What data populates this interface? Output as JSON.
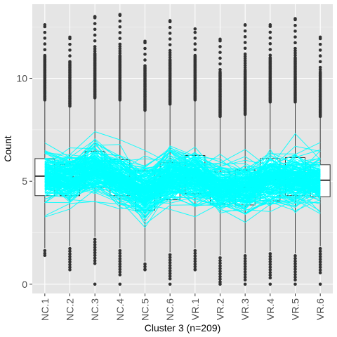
{
  "chart_data": {
    "type": "box",
    "title": "",
    "xlabel": "Cluster 3 (n=209)",
    "ylabel": "Count",
    "categories": [
      "NC.1",
      "NC.2",
      "NC.3",
      "NC.4",
      "NC.5",
      "NC.6",
      "VR.1",
      "VR.2",
      "VR.3",
      "VR.4",
      "VR.5",
      "VR.6"
    ],
    "ylim": [
      -0.45,
      13.6
    ],
    "yticks": [
      0,
      5,
      10
    ],
    "grid": true,
    "panel_background": "#E5E5E5",
    "grid_color": "#FFFFFF",
    "box_fill": "#FFFFFF",
    "box_stroke": "#333333",
    "outlier_color": "#333333",
    "line_color": "#00FFFF",
    "line_count": 209,
    "boxes": [
      {
        "category": "NC.1",
        "q1": 4.3,
        "median": 5.25,
        "q3": 6.1,
        "whisker_low": 1.75,
        "whisker_high": 8.9,
        "outlier_max": 12.6,
        "outlier_min": 1.4
      },
      {
        "category": "NC.2",
        "q1": 4.3,
        "median": 5.2,
        "q3": 5.8,
        "whisker_low": 1.85,
        "whisker_high": 8.6,
        "outlier_max": 12.0,
        "outlier_min": 0.7
      },
      {
        "category": "NC.3",
        "q1": 4.7,
        "median": 5.6,
        "q3": 6.45,
        "whisker_low": 2.3,
        "whisker_high": 9.0,
        "outlier_max": 13.0,
        "outlier_min": 0.0
      },
      {
        "category": "NC.4",
        "q1": 4.3,
        "median": 5.1,
        "q3": 6.05,
        "whisker_low": 1.75,
        "whisker_high": 8.9,
        "outlier_max": 13.1,
        "outlier_min": 0.0
      },
      {
        "category": "NC.5",
        "q1": 3.6,
        "median": 4.5,
        "q3": 5.5,
        "whisker_low": 1.1,
        "whisker_high": 8.4,
        "outlier_max": 11.8,
        "outlier_min": 0.7
      },
      {
        "category": "NC.6",
        "q1": 4.1,
        "median": 5.2,
        "q3": 5.9,
        "whisker_low": 1.55,
        "whisker_high": 8.7,
        "outlier_max": 12.8,
        "outlier_min": 0.0
      },
      {
        "category": "VR.1",
        "q1": 4.4,
        "median": 5.2,
        "q3": 6.25,
        "whisker_low": 1.75,
        "whisker_high": 8.9,
        "outlier_max": 12.4,
        "outlier_min": 0.7
      },
      {
        "category": "VR.2",
        "q1": 3.9,
        "median": 4.65,
        "q3": 5.45,
        "whisker_low": 1.4,
        "whisker_high": 8.1,
        "outlier_max": 11.9,
        "outlier_min": 0.0
      },
      {
        "category": "VR.3",
        "q1": 3.85,
        "median": 4.7,
        "q3": 5.55,
        "whisker_low": 1.5,
        "whisker_high": 8.2,
        "outlier_max": 12.6,
        "outlier_min": 0.0
      },
      {
        "category": "VR.4",
        "q1": 4.05,
        "median": 5.1,
        "q3": 6.1,
        "whisker_low": 1.6,
        "whisker_high": 8.8,
        "outlier_max": 12.6,
        "outlier_min": 0.0
      },
      {
        "category": "VR.5",
        "q1": 4.3,
        "median": 5.1,
        "q3": 6.15,
        "whisker_low": 1.5,
        "whisker_high": 8.8,
        "outlier_max": 12.9,
        "outlier_min": 0.0
      },
      {
        "category": "VR.6",
        "q1": 4.25,
        "median": 5.05,
        "q3": 5.8,
        "whisker_low": 1.85,
        "whisker_high": 8.1,
        "outlier_max": 12.0,
        "outlier_min": 0.0
      }
    ]
  }
}
